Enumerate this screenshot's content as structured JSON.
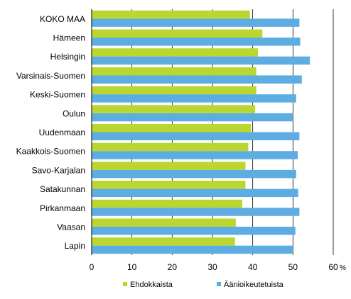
{
  "chart_data": {
    "type": "bar",
    "orientation": "horizontal",
    "categories": [
      "KOKO MAA",
      "Hämeen",
      "Helsingin",
      "Varsinais-Suomen",
      "Keski-Suomen",
      "Oulun",
      "Uudenmaan",
      "Kaakkois-Suomen",
      "Savo-Karjalan",
      "Satakunnan",
      "Pirkanmaan",
      "Vaasan",
      "Lapin"
    ],
    "series": [
      {
        "name": "Ehdokkaista",
        "color": "#bcd630",
        "values": [
          39.3,
          42.4,
          41.3,
          40.9,
          40.9,
          40.6,
          39.6,
          38.9,
          38.2,
          38.2,
          37.4,
          35.8,
          35.6
        ]
      },
      {
        "name": "Äänioikeutetuista",
        "color": "#5dade2",
        "values": [
          51.6,
          51.8,
          54.2,
          52.2,
          50.8,
          50.0,
          51.6,
          51.2,
          50.8,
          51.3,
          51.6,
          50.6,
          50.0
        ]
      }
    ],
    "xlim": [
      0,
      60
    ],
    "xticks": [
      0,
      10,
      20,
      30,
      40,
      50,
      60
    ],
    "x_unit": "%",
    "grid": "vertical",
    "legend": "bottom"
  }
}
